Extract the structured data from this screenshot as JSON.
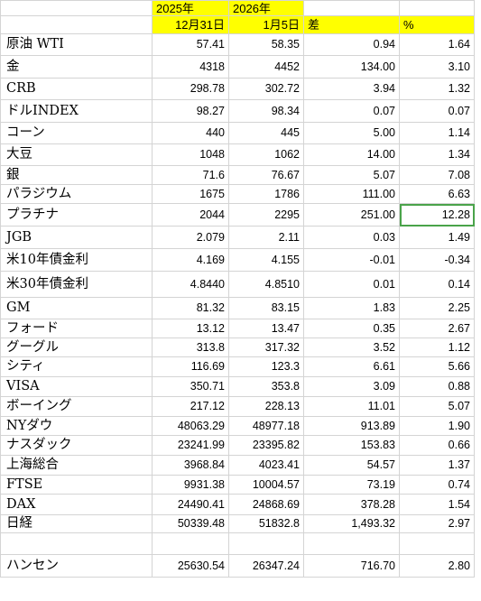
{
  "header": {
    "year1": "2025年",
    "year2": "2026年",
    "date1": "12月31日",
    "date2": "1月5日",
    "diff_label": "差",
    "pct_label": "%"
  },
  "rows": [
    {
      "name": "原油 WTI",
      "v1": "57.41",
      "v2": "58.35",
      "diff": "0.94",
      "pct": "1.64"
    },
    {
      "name": "金",
      "v1": "4318",
      "v2": "4452",
      "diff": "134.00",
      "pct": "3.10"
    },
    {
      "name": "CRB",
      "v1": "298.78",
      "v2": "302.72",
      "diff": "3.94",
      "pct": "1.32"
    },
    {
      "name": "ドルINDEX",
      "v1": "98.27",
      "v2": "98.34",
      "diff": "0.07",
      "pct": "0.07"
    },
    {
      "name": "コーン",
      "v1": "440",
      "v2": "445",
      "diff": "5.00",
      "pct": "1.14"
    },
    {
      "name": "大豆",
      "v1": "1048",
      "v2": "1062",
      "diff": "14.00",
      "pct": "1.34"
    },
    {
      "name": "銀",
      "v1": "71.6",
      "v2": "76.67",
      "diff": "5.07",
      "pct": "7.08"
    },
    {
      "name": "パラジウム",
      "v1": "1675",
      "v2": "1786",
      "diff": "111.00",
      "pct": "6.63"
    },
    {
      "name": "プラチナ",
      "v1": "2044",
      "v2": "2295",
      "diff": "251.00",
      "pct": "12.28"
    },
    {
      "name": "JGB",
      "v1": "2.079",
      "v2": "2.11",
      "diff": "0.03",
      "pct": "1.49"
    },
    {
      "name": "米10年債金利",
      "v1": "4.169",
      "v2": "4.155",
      "diff": "-0.01",
      "pct": "-0.34"
    },
    {
      "name": "米30年債金利",
      "v1": "4.8440",
      "v2": "4.8510",
      "diff": "0.01",
      "pct": "0.14"
    },
    {
      "name": "GM",
      "v1": "81.32",
      "v2": "83.15",
      "diff": "1.83",
      "pct": "2.25"
    },
    {
      "name": "フォード",
      "v1": "13.12",
      "v2": "13.47",
      "diff": "0.35",
      "pct": "2.67"
    },
    {
      "name": "グーグル",
      "v1": "313.8",
      "v2": "317.32",
      "diff": "3.52",
      "pct": "1.12"
    },
    {
      "name": "シティ",
      "v1": "116.69",
      "v2": "123.3",
      "diff": "6.61",
      "pct": "5.66"
    },
    {
      "name": "VISA",
      "v1": "350.71",
      "v2": "353.8",
      "diff": "3.09",
      "pct": "0.88"
    },
    {
      "name": "ボーイング",
      "v1": "217.12",
      "v2": "228.13",
      "diff": "11.01",
      "pct": "5.07"
    },
    {
      "name": "NYダウ",
      "v1": "48063.29",
      "v2": "48977.18",
      "diff": "913.89",
      "pct": "1.90"
    },
    {
      "name": "ナスダック",
      "v1": "23241.99",
      "v2": "23395.82",
      "diff": "153.83",
      "pct": "0.66"
    },
    {
      "name": "上海総合",
      "v1": "3968.84",
      "v2": "4023.41",
      "diff": "54.57",
      "pct": "1.37"
    },
    {
      "name": "FTSE",
      "v1": "9931.38",
      "v2": "10004.57",
      "diff": "73.19",
      "pct": "0.74"
    },
    {
      "name": "DAX",
      "v1": "24490.41",
      "v2": "24868.69",
      "diff": "378.28",
      "pct": "1.54"
    },
    {
      "name": "日経",
      "v1": "50339.48",
      "v2": "51832.8",
      "diff": "1,493.32",
      "pct": "2.97"
    },
    {
      "name": "",
      "v1": "",
      "v2": "",
      "diff": "",
      "pct": ""
    },
    {
      "name": "ハンセン",
      "v1": "25630.54",
      "v2": "26347.24",
      "diff": "716.70",
      "pct": "2.80"
    }
  ],
  "selected_cell": {
    "row": 8,
    "col": "pct"
  },
  "colors": {
    "header_fill": "#ffff00",
    "selection": "#4aa34a",
    "grid": "#d4d4d4"
  }
}
